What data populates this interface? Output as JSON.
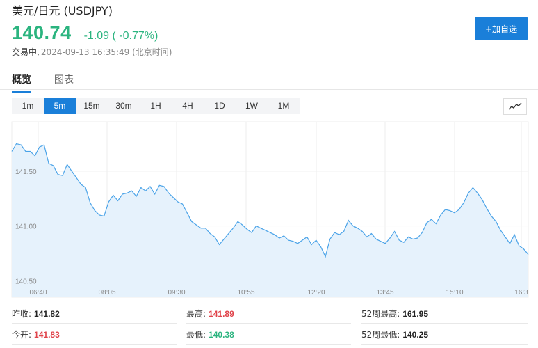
{
  "header": {
    "title": "美元/日元 (USDJPY)",
    "price": "140.74",
    "change": "-1.09 ( -0.77%)",
    "status_label": "交易中,",
    "status_time": "2024-09-13 16:35:49 (北京时间)",
    "add_watchlist_label": "+加自选"
  },
  "tabs": [
    {
      "label": "概览",
      "active": true
    },
    {
      "label": "图表",
      "active": false
    }
  ],
  "periods": [
    {
      "label": "1m",
      "active": false
    },
    {
      "label": "5m",
      "active": true
    },
    {
      "label": "15m",
      "active": false
    },
    {
      "label": "30m",
      "active": false
    },
    {
      "label": "1H",
      "active": false
    },
    {
      "label": "4H",
      "active": false
    },
    {
      "label": "1D",
      "active": false
    },
    {
      "label": "1W",
      "active": false
    },
    {
      "label": "1M",
      "active": false
    }
  ],
  "chart_type_icon": "line-chart-icon",
  "chart_data": {
    "type": "area",
    "y_ticks": [
      "141.50",
      "141.00",
      "140.50"
    ],
    "y_tick_values": [
      141.5,
      141.0,
      140.5
    ],
    "x_ticks": [
      "06:40",
      "08:05",
      "09:30",
      "10:55",
      "12:20",
      "13:45",
      "15:10",
      "16:3"
    ],
    "ylim": [
      140.35,
      141.95
    ],
    "values": [
      141.68,
      141.75,
      141.74,
      141.68,
      141.68,
      141.64,
      141.72,
      141.74,
      141.57,
      141.55,
      141.47,
      141.46,
      141.56,
      141.5,
      141.44,
      141.38,
      141.35,
      141.21,
      141.14,
      141.1,
      141.09,
      141.22,
      141.28,
      141.23,
      141.29,
      141.3,
      141.32,
      141.27,
      141.35,
      141.32,
      141.36,
      141.29,
      141.37,
      141.36,
      141.3,
      141.26,
      141.22,
      141.2,
      141.12,
      141.04,
      141.01,
      140.98,
      140.98,
      140.93,
      140.9,
      140.83,
      140.88,
      140.93,
      140.98,
      141.04,
      141.01,
      140.97,
      140.94,
      141.0,
      140.98,
      140.96,
      140.94,
      140.92,
      140.89,
      140.91,
      140.87,
      140.86,
      140.84,
      140.87,
      140.9,
      140.83,
      140.87,
      140.81,
      140.72,
      140.88,
      140.94,
      140.92,
      140.95,
      141.05,
      141.0,
      140.98,
      140.95,
      140.9,
      140.93,
      140.88,
      140.86,
      140.84,
      140.89,
      140.95,
      140.87,
      140.85,
      140.9,
      140.88,
      140.89,
      140.94,
      141.03,
      141.06,
      141.02,
      141.1,
      141.15,
      141.14,
      141.12,
      141.15,
      141.21,
      141.3,
      141.35,
      141.3,
      141.24,
      141.16,
      141.09,
      141.04,
      140.96,
      140.9,
      140.84,
      140.92,
      140.82,
      140.79,
      140.74
    ],
    "colors": {
      "line": "#4aa3e8",
      "fill": "#e6f2fc",
      "grid": "#eeeeee"
    }
  },
  "stats": [
    {
      "label": "昨收:",
      "value": "141.82",
      "color": "dark"
    },
    {
      "label": "最高:",
      "value": "141.89",
      "color": "red"
    },
    {
      "label": "52周最高:",
      "value": "161.95",
      "color": "dark"
    },
    {
      "label": "今开:",
      "value": "141.83",
      "color": "red"
    },
    {
      "label": "最低:",
      "value": "140.38",
      "color": "green"
    },
    {
      "label": "52周最低:",
      "value": "140.25",
      "color": "dark"
    }
  ]
}
